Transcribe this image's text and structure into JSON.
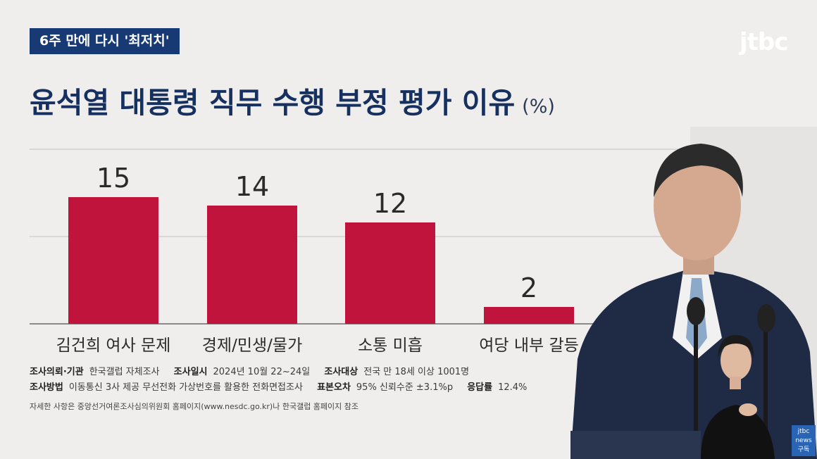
{
  "tag": "6주 만에 다시 '최저치'",
  "logo": "jtbc",
  "title": "윤석열 대통령 직무 수행 부정 평가 이유",
  "unit": "(%)",
  "chart_data": {
    "type": "bar",
    "categories": [
      "김건희 여사 문제",
      "경제/민생/물가",
      "소통 미흡",
      "여당 내부 갈등"
    ],
    "values": [
      15,
      14,
      12,
      2
    ],
    "title": "윤석열 대통령 직무 수행 부정 평가 이유",
    "xlabel": "",
    "ylabel": "",
    "unit": "(%)",
    "ylim": [
      0,
      20
    ],
    "grid": true,
    "bar_color": "#c0143c"
  },
  "notes": {
    "l1_k1": "조사의뢰·기관",
    "l1_v1": "한국갤럽 자체조사",
    "l1_k2": "조사일시",
    "l1_v2": "2024년 10월 22~24일",
    "l1_k3": "조사대상",
    "l1_v3": "전국 만 18세 이상 1001명",
    "l2_k1": "조사방법",
    "l2_v1": "이동통신 3사 제공 무선전화 가상번호를 활용한 전화면접조사",
    "l2_k2": "표본오차",
    "l2_v2": "95% 신뢰수준 ±3.1%p",
    "l2_k3": "응답률",
    "l2_v3": "12.4%",
    "footer": "자세한 사항은 중앙선거여론조사심의위원회 홈페이지(www.nesdc.go.kr)나 한국갤럽 홈페이지 참조"
  },
  "badge": {
    "top": "jtbc",
    "mid": "news",
    "bottom": "구독"
  },
  "colors": {
    "accent": "#c0143c",
    "title": "#16305f",
    "tag_bg": "#173a75"
  }
}
